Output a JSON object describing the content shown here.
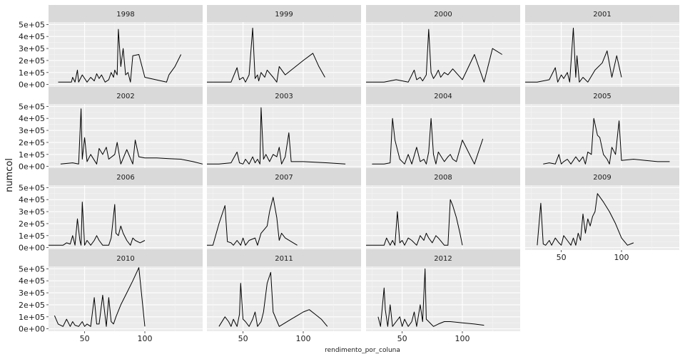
{
  "chart_data": {
    "type": "line",
    "facet_by": "year",
    "xlabel": "rendimento_por_coluna",
    "ylabel": "numcol",
    "xlim": [
      20,
      148
    ],
    "ylim": [
      -20000,
      520000
    ],
    "x_ticks": [
      50,
      100
    ],
    "x_tick_labels": [
      "50",
      "100"
    ],
    "y_ticks": [
      0,
      100000,
      200000,
      300000,
      400000,
      500000
    ],
    "y_tick_labels": [
      "0e+00",
      "1e+05",
      "2e+05",
      "3e+05",
      "4e+05",
      "5e+05"
    ],
    "grid": true,
    "line_color": "#000000",
    "panel_background": "#ebebeb",
    "strip_background": "#d9d9d9",
    "facets": [
      {
        "year": "1998",
        "x": [
          28,
          35,
          39,
          40,
          42,
          44,
          45,
          46,
          48,
          52,
          55,
          58,
          60,
          62,
          64,
          67,
          70,
          72,
          74,
          75,
          77,
          78,
          80,
          82,
          84,
          86,
          88,
          90,
          95,
          100,
          118,
          120,
          125,
          130
        ],
        "y": [
          20000,
          20000,
          20000,
          60000,
          20000,
          120000,
          20000,
          40000,
          80000,
          20000,
          60000,
          30000,
          90000,
          50000,
          80000,
          20000,
          40000,
          100000,
          60000,
          120000,
          80000,
          460000,
          150000,
          300000,
          80000,
          100000,
          20000,
          240000,
          250000,
          60000,
          20000,
          80000,
          150000,
          250000
        ]
      },
      {
        "year": "1999",
        "x": [
          20,
          30,
          40,
          45,
          47,
          50,
          52,
          55,
          58,
          60,
          62,
          63,
          65,
          68,
          70,
          75,
          78,
          80,
          85,
          90,
          100,
          108,
          113,
          118
        ],
        "y": [
          20000,
          20000,
          20000,
          140000,
          40000,
          60000,
          20000,
          80000,
          470000,
          50000,
          80000,
          30000,
          100000,
          60000,
          120000,
          60000,
          20000,
          150000,
          80000,
          120000,
          200000,
          260000,
          150000,
          60000
        ]
      },
      {
        "year": "2000",
        "x": [
          20,
          35,
          45,
          55,
          60,
          62,
          65,
          67,
          70,
          72,
          74,
          76,
          78,
          80,
          82,
          85,
          88,
          92,
          100,
          110,
          118,
          125,
          133
        ],
        "y": [
          20000,
          20000,
          40000,
          20000,
          120000,
          40000,
          60000,
          30000,
          80000,
          460000,
          100000,
          50000,
          80000,
          120000,
          60000,
          100000,
          80000,
          130000,
          40000,
          250000,
          20000,
          300000,
          250000
        ]
      },
      {
        "year": "2001",
        "x": [
          20,
          30,
          40,
          45,
          47,
          50,
          52,
          55,
          57,
          60,
          62,
          63,
          65,
          68,
          72,
          78,
          84,
          88,
          92,
          96,
          100
        ],
        "y": [
          20000,
          20000,
          40000,
          140000,
          20000,
          80000,
          50000,
          100000,
          20000,
          470000,
          60000,
          240000,
          20000,
          60000,
          20000,
          120000,
          180000,
          280000,
          60000,
          240000,
          60000
        ]
      },
      {
        "year": "2002",
        "x": [
          30,
          40,
          45,
          47,
          48,
          50,
          52,
          55,
          60,
          62,
          65,
          68,
          70,
          75,
          77,
          80,
          85,
          90,
          92,
          95,
          100,
          110,
          120,
          130,
          140,
          148
        ],
        "y": [
          20000,
          30000,
          20000,
          480000,
          60000,
          240000,
          40000,
          100000,
          20000,
          150000,
          100000,
          160000,
          60000,
          100000,
          200000,
          20000,
          140000,
          20000,
          220000,
          80000,
          70000,
          70000,
          65000,
          60000,
          40000,
          20000
        ]
      },
      {
        "year": "2003",
        "x": [
          20,
          30,
          40,
          45,
          47,
          50,
          52,
          55,
          58,
          60,
          62,
          64,
          65,
          67,
          69,
          72,
          75,
          78,
          80,
          82,
          85,
          88,
          90,
          100,
          120,
          135
        ],
        "y": [
          20000,
          20000,
          30000,
          120000,
          30000,
          20000,
          60000,
          20000,
          80000,
          30000,
          60000,
          20000,
          490000,
          60000,
          100000,
          40000,
          100000,
          80000,
          160000,
          20000,
          80000,
          280000,
          40000,
          40000,
          30000,
          20000
        ]
      },
      {
        "year": "2004",
        "x": [
          25,
          35,
          40,
          42,
          44,
          48,
          52,
          55,
          58,
          62,
          65,
          68,
          70,
          72,
          74,
          76,
          78,
          80,
          85,
          88,
          90,
          92,
          95,
          100,
          110,
          117
        ],
        "y": [
          20000,
          20000,
          30000,
          400000,
          220000,
          60000,
          20000,
          100000,
          20000,
          160000,
          40000,
          60000,
          20000,
          120000,
          400000,
          100000,
          20000,
          120000,
          40000,
          80000,
          100000,
          60000,
          40000,
          220000,
          20000,
          230000
        ]
      },
      {
        "year": "2005",
        "x": [
          35,
          40,
          45,
          48,
          50,
          52,
          55,
          58,
          62,
          65,
          68,
          70,
          72,
          75,
          77,
          80,
          82,
          85,
          88,
          90,
          92,
          95,
          98,
          100,
          110,
          120,
          130,
          140
        ],
        "y": [
          20000,
          30000,
          20000,
          100000,
          20000,
          40000,
          60000,
          20000,
          80000,
          40000,
          80000,
          20000,
          120000,
          100000,
          400000,
          260000,
          240000,
          100000,
          60000,
          20000,
          160000,
          100000,
          380000,
          50000,
          60000,
          50000,
          40000,
          40000
        ]
      },
      {
        "year": "2006",
        "x": [
          20,
          30,
          32,
          35,
          38,
          40,
          42,
          44,
          46,
          47,
          48,
          50,
          52,
          55,
          58,
          60,
          62,
          65,
          70,
          72,
          75,
          76,
          78,
          80,
          82,
          85,
          88,
          90,
          92,
          96,
          100
        ],
        "y": [
          20000,
          20000,
          20000,
          40000,
          30000,
          100000,
          20000,
          240000,
          60000,
          20000,
          380000,
          20000,
          60000,
          20000,
          60000,
          100000,
          60000,
          20000,
          20000,
          80000,
          360000,
          120000,
          100000,
          180000,
          120000,
          60000,
          20000,
          80000,
          60000,
          40000,
          60000
        ]
      },
      {
        "year": "2007",
        "x": [
          20,
          25,
          30,
          35,
          37,
          40,
          42,
          45,
          48,
          50,
          52,
          55,
          60,
          62,
          65,
          70,
          72,
          75,
          78,
          80,
          82,
          85,
          90,
          95
        ],
        "y": [
          20000,
          20000,
          200000,
          350000,
          50000,
          40000,
          20000,
          60000,
          20000,
          80000,
          20000,
          60000,
          80000,
          20000,
          120000,
          180000,
          300000,
          420000,
          250000,
          60000,
          120000,
          80000,
          50000,
          20000
        ]
      },
      {
        "year": "2008",
        "x": [
          20,
          30,
          35,
          37,
          40,
          42,
          44,
          46,
          48,
          50,
          52,
          55,
          58,
          62,
          65,
          68,
          70,
          72,
          75,
          78,
          80,
          85,
          88,
          90,
          92,
          95,
          98,
          100
        ],
        "y": [
          20000,
          20000,
          20000,
          80000,
          20000,
          60000,
          20000,
          300000,
          40000,
          60000,
          20000,
          80000,
          60000,
          20000,
          100000,
          60000,
          120000,
          80000,
          40000,
          100000,
          80000,
          20000,
          20000,
          400000,
          350000,
          250000,
          120000,
          20000
        ]
      },
      {
        "year": "2009",
        "x": [
          30,
          33,
          35,
          37,
          40,
          42,
          45,
          48,
          50,
          52,
          55,
          58,
          60,
          62,
          64,
          66,
          68,
          70,
          72,
          74,
          76,
          78,
          80,
          85,
          90,
          95,
          100,
          105,
          110
        ],
        "y": [
          20000,
          370000,
          30000,
          20000,
          60000,
          20000,
          80000,
          40000,
          20000,
          100000,
          60000,
          20000,
          80000,
          20000,
          120000,
          60000,
          280000,
          120000,
          240000,
          180000,
          260000,
          300000,
          450000,
          380000,
          300000,
          200000,
          80000,
          20000,
          40000
        ]
      },
      {
        "year": "2010",
        "x": [
          25,
          28,
          32,
          35,
          38,
          40,
          42,
          45,
          48,
          50,
          52,
          55,
          58,
          60,
          62,
          65,
          68,
          70,
          72,
          74,
          76,
          80,
          85,
          90,
          95,
          100
        ],
        "y": [
          110000,
          40000,
          20000,
          80000,
          20000,
          60000,
          30000,
          20000,
          60000,
          20000,
          40000,
          20000,
          260000,
          40000,
          40000,
          280000,
          20000,
          260000,
          60000,
          40000,
          100000,
          200000,
          300000,
          400000,
          510000,
          20000
        ]
      },
      {
        "year": "2011",
        "x": [
          30,
          35,
          38,
          40,
          42,
          45,
          47,
          48,
          50,
          52,
          55,
          58,
          60,
          62,
          65,
          67,
          70,
          73,
          75,
          80,
          85,
          90,
          95,
          100,
          105,
          110,
          115,
          120
        ],
        "y": [
          20000,
          100000,
          60000,
          20000,
          80000,
          20000,
          120000,
          380000,
          80000,
          60000,
          20000,
          80000,
          140000,
          20000,
          60000,
          140000,
          380000,
          470000,
          140000,
          20000,
          50000,
          80000,
          110000,
          140000,
          160000,
          120000,
          80000,
          20000
        ]
      },
      {
        "year": "2012",
        "x": [
          30,
          32,
          35,
          36,
          38,
          40,
          42,
          45,
          48,
          50,
          52,
          55,
          58,
          60,
          62,
          65,
          67,
          69,
          70,
          72,
          74,
          76,
          80,
          85,
          90,
          100,
          110,
          118
        ],
        "y": [
          100000,
          20000,
          340000,
          160000,
          20000,
          200000,
          20000,
          60000,
          100000,
          20000,
          80000,
          20000,
          60000,
          140000,
          20000,
          200000,
          60000,
          500000,
          80000,
          60000,
          40000,
          20000,
          40000,
          60000,
          60000,
          50000,
          40000,
          30000
        ]
      }
    ]
  }
}
